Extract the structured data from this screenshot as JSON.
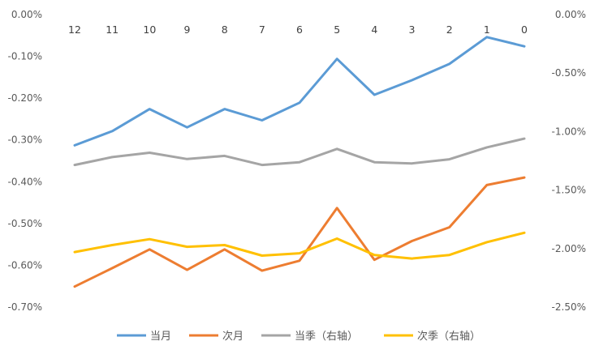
{
  "chart_data": {
    "type": "line",
    "categories": [
      "12",
      "11",
      "10",
      "9",
      "8",
      "7",
      "6",
      "5",
      "4",
      "3",
      "2",
      "1",
      "0"
    ],
    "left_axis": {
      "ticks": [
        "0.00%",
        "-0.10%",
        "-0.20%",
        "-0.30%",
        "-0.40%",
        "-0.50%",
        "-0.60%",
        "-0.70%"
      ],
      "ylim": [
        -0.7,
        0.0
      ]
    },
    "right_axis": {
      "ticks": [
        "0.00%",
        "-0.50%",
        "-1.00%",
        "-1.50%",
        "-2.00%",
        "-2.50%"
      ],
      "ylim": [
        -2.5,
        0.0
      ]
    },
    "series": [
      {
        "name": "当月",
        "axis": "left",
        "color": "#5B9BD5",
        "values": [
          -0.313,
          -0.279,
          -0.226,
          -0.27,
          -0.226,
          -0.253,
          -0.211,
          -0.106,
          -0.192,
          -0.157,
          -0.118,
          -0.054,
          -0.076
        ]
      },
      {
        "name": "次月",
        "axis": "left",
        "color": "#ED7D31",
        "values": [
          -0.651,
          -0.607,
          -0.562,
          -0.611,
          -0.562,
          -0.613,
          -0.589,
          -0.463,
          -0.587,
          -0.542,
          -0.509,
          -0.408,
          -0.39
        ]
      },
      {
        "name": "当季（右轴）",
        "axis": "right",
        "color": "#A5A5A5",
        "values": [
          -1.285,
          -1.218,
          -1.181,
          -1.235,
          -1.208,
          -1.285,
          -1.262,
          -1.148,
          -1.262,
          -1.272,
          -1.237,
          -1.135,
          -1.06
        ]
      },
      {
        "name": "次季（右轴）",
        "axis": "right",
        "color": "#FFC000",
        "values": [
          -2.03,
          -1.97,
          -1.92,
          -1.985,
          -1.97,
          -2.06,
          -2.04,
          -1.915,
          -2.055,
          -2.085,
          -2.055,
          -1.945,
          -1.865
        ]
      }
    ],
    "grid": false,
    "legend": "bottom"
  }
}
